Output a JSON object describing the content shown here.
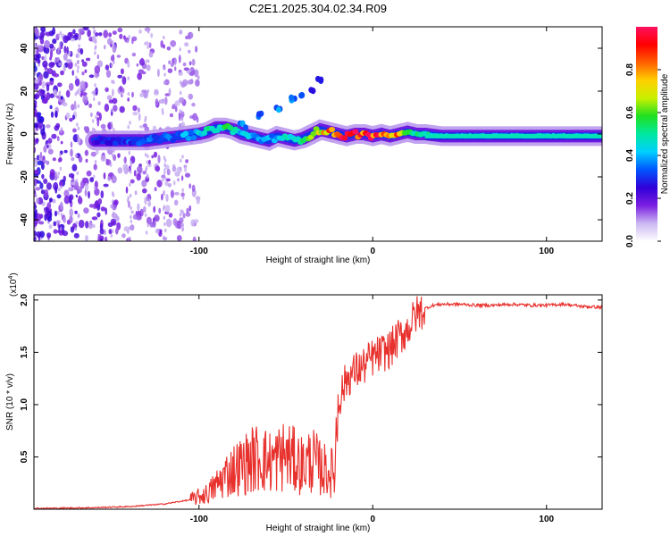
{
  "title": "C2E1.2025.304.02.34.R09",
  "chart_data": [
    {
      "type": "heatmap",
      "title": "C2E1.2025.304.02.34.R09",
      "xlabel": "Height of straight line (km)",
      "ylabel": "Frequency (Hz)",
      "xlim": [
        -195,
        132
      ],
      "ylim": [
        -50,
        50
      ],
      "xticks": [
        -100,
        0,
        100
      ],
      "xtick_labels": [
        "-100",
        "0",
        "100"
      ],
      "yticks": [
        -40,
        -20,
        0,
        20,
        40
      ],
      "ytick_labels": [
        "-40",
        "-20",
        "0",
        "20",
        "40"
      ],
      "colorbar": {
        "label": "Normalized spectral amplitude",
        "range": [
          0.0,
          1.0
        ],
        "ticks": [
          0.0,
          0.2,
          0.4,
          0.6,
          0.8
        ],
        "tick_labels": [
          "0.0",
          "0.2",
          "0.4",
          "0.6",
          "0.8"
        ],
        "colors": [
          "#ffffff",
          "#cbb7f2",
          "#7a1fe0",
          "#3000d8",
          "#0055ff",
          "#00d0ff",
          "#00e8a0",
          "#20e020",
          "#c8f000",
          "#ffd000",
          "#ff6000",
          "#ff0000",
          "#ff1060"
        ]
      },
      "ridge": {
        "x": [
          -160,
          -150,
          -140,
          -130,
          -120,
          -110,
          -100,
          -95,
          -90,
          -85,
          -80,
          -75,
          -70,
          -65,
          -60,
          -55,
          -50,
          -45,
          -40,
          -35,
          -30,
          -25,
          -20,
          -15,
          -10,
          -5,
          0,
          5,
          10,
          15,
          20,
          25,
          30,
          40,
          60,
          80,
          100,
          120,
          132
        ],
        "y": [
          -3,
          -3,
          -3,
          -3,
          -2,
          -1,
          0,
          1,
          3,
          3,
          2,
          0,
          -1,
          -2,
          -3,
          -1,
          -2,
          -3,
          -2,
          0,
          2,
          1,
          0,
          -1,
          0,
          0,
          -1,
          0,
          -1,
          0,
          1,
          0,
          0,
          -1,
          -1,
          -1,
          -1,
          -1,
          -1
        ],
        "amplitude": [
          0.25,
          0.3,
          0.32,
          0.33,
          0.35,
          0.38,
          0.45,
          0.5,
          0.55,
          0.55,
          0.5,
          0.45,
          0.42,
          0.4,
          0.4,
          0.42,
          0.45,
          0.48,
          0.55,
          0.65,
          0.75,
          0.85,
          0.9,
          0.92,
          0.93,
          0.95,
          0.92,
          0.9,
          0.88,
          0.8,
          0.7,
          0.55,
          0.5,
          0.45,
          0.45,
          0.45,
          0.45,
          0.45,
          0.45
        ]
      },
      "side_branch": {
        "x": [
          -75,
          -65,
          -55,
          -45,
          -40,
          -35,
          -30
        ],
        "y": [
          4,
          9,
          12,
          16,
          18,
          21,
          25
        ],
        "amplitude": [
          0.3,
          0.3,
          0.3,
          0.3,
          0.28,
          0.25,
          0.25
        ]
      }
    },
    {
      "type": "line",
      "xlabel": "Height of straight line (km)",
      "ylabel": "SNR (10 * v/v)",
      "multiplier_label": "(x10",
      "multiplier_exponent": "4",
      "xlim": [
        -195,
        132
      ],
      "ylim": [
        0,
        20500
      ],
      "xticks": [
        -100,
        0,
        100
      ],
      "xtick_labels": [
        "-100",
        "0",
        "100"
      ],
      "yticks": [
        5000,
        10000,
        15000,
        20000
      ],
      "ytick_labels": [
        "0.5",
        "1.0",
        "1.5",
        "2.0"
      ],
      "color": "#e8312d",
      "series": [
        {
          "name": "SNR",
          "x": [
            -195,
            -180,
            -160,
            -140,
            -120,
            -105,
            -95,
            -90,
            -85,
            -80,
            -75,
            -70,
            -65,
            -60,
            -55,
            -50,
            -45,
            -40,
            -35,
            -30,
            -25,
            -22,
            -20,
            -15,
            -10,
            -5,
            0,
            5,
            10,
            15,
            20,
            25,
            30,
            35,
            40,
            50,
            60,
            70,
            80,
            90,
            100,
            110,
            120,
            132
          ],
          "y": [
            80,
            100,
            150,
            250,
            500,
            900,
            1500,
            2300,
            3200,
            3800,
            4200,
            4700,
            5000,
            4500,
            4800,
            5200,
            4600,
            4200,
            4800,
            3900,
            3600,
            3400,
            10200,
            12500,
            13200,
            13700,
            14500,
            14900,
            15300,
            16400,
            17200,
            18600,
            19200,
            19500,
            19600,
            19600,
            19500,
            19500,
            19600,
            19500,
            19500,
            19600,
            19400,
            19300
          ]
        }
      ]
    }
  ]
}
